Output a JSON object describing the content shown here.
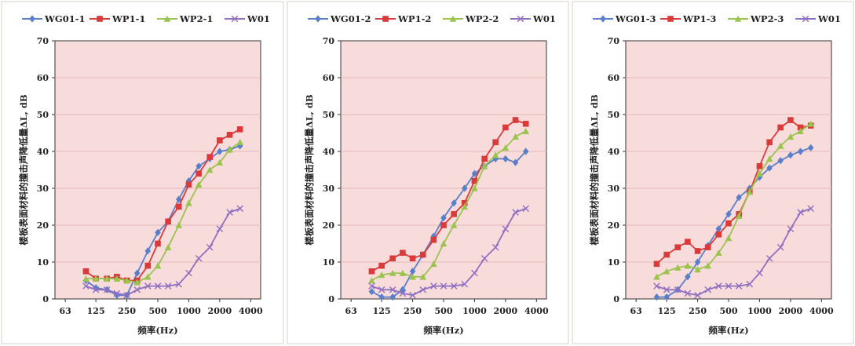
{
  "colors": {
    "background": "#ffffff",
    "panel_border": "#d8d0c8",
    "plot_background": "#f8dcdc",
    "grid": "#e6b8b8",
    "series": [
      "#5a7fc9",
      "#d93a3a",
      "#9bc44e",
      "#8f6fbf"
    ]
  },
  "chart_data": [
    {
      "type": "line",
      "xlabel": "频率(Hz)",
      "ylabel": "楼板表面材料的撞击声降低量ΔL, dB",
      "x_scale": "log",
      "x_ticks": [
        63,
        125,
        250,
        500,
        1000,
        2000,
        4000
      ],
      "xlim": [
        50,
        5000
      ],
      "ylim": [
        0,
        70
      ],
      "y_ticks": [
        0,
        10,
        20,
        30,
        40,
        50,
        60,
        70
      ],
      "legend_position": "top",
      "x": [
        100,
        125,
        160,
        200,
        250,
        315,
        400,
        500,
        630,
        800,
        1000,
        1250,
        1600,
        2000,
        2500,
        3150
      ],
      "series": [
        {
          "name": "WG01-1",
          "marker": "diamond",
          "values": [
            5,
            3,
            2.5,
            1,
            1,
            7,
            13,
            18,
            21,
            27,
            32,
            36,
            38,
            40,
            40.5,
            41.5
          ]
        },
        {
          "name": "WP1-1",
          "marker": "square",
          "values": [
            7.5,
            5.5,
            5.5,
            6,
            5,
            5,
            9,
            15,
            21,
            25,
            31,
            34,
            38.5,
            43,
            44.5,
            46
          ]
        },
        {
          "name": "WP2-1",
          "marker": "triangle",
          "values": [
            5.5,
            5.5,
            5.5,
            5.5,
            5,
            4.5,
            6,
            9,
            14,
            20,
            26,
            31,
            35,
            37,
            40.5,
            42.5
          ]
        },
        {
          "name": "W01",
          "marker": "x",
          "values": [
            3.5,
            2.5,
            2.5,
            1.5,
            1,
            2.5,
            3.5,
            3.5,
            3.5,
            4,
            7,
            11,
            14,
            19,
            23.5,
            24.5
          ]
        }
      ]
    },
    {
      "type": "line",
      "xlabel": "频率(Hz)",
      "ylabel": "楼板表面材料的撞击声降低量ΔL, dB",
      "x_scale": "log",
      "x_ticks": [
        63,
        125,
        250,
        500,
        1000,
        2000,
        4000
      ],
      "xlim": [
        50,
        5000
      ],
      "ylim": [
        0,
        70
      ],
      "y_ticks": [
        0,
        10,
        20,
        30,
        40,
        50,
        60,
        70
      ],
      "legend_position": "top",
      "x": [
        100,
        125,
        160,
        200,
        250,
        315,
        400,
        500,
        630,
        800,
        1000,
        1250,
        1600,
        2000,
        2500,
        3150
      ],
      "series": [
        {
          "name": "WG01-2",
          "marker": "diamond",
          "values": [
            2,
            0.5,
            0.5,
            2.5,
            7.5,
            12,
            17,
            22,
            26,
            30,
            34,
            36,
            38,
            38,
            37,
            40
          ]
        },
        {
          "name": "WP1-2",
          "marker": "square",
          "values": [
            7.5,
            9,
            11,
            12.5,
            11,
            12,
            16,
            20,
            23,
            26,
            32,
            38,
            42.5,
            46.5,
            48.5,
            47.5
          ]
        },
        {
          "name": "WP2-2",
          "marker": "triangle",
          "values": [
            5,
            6.5,
            7,
            7,
            6,
            6,
            9.5,
            15,
            20,
            25,
            30,
            36,
            39,
            41,
            44,
            45.5
          ]
        },
        {
          "name": "W01",
          "marker": "x",
          "values": [
            3.5,
            2.5,
            2.5,
            1.5,
            1,
            2.5,
            3.5,
            3.5,
            3.5,
            4,
            7,
            11,
            14,
            19,
            23.5,
            24.5
          ]
        }
      ]
    },
    {
      "type": "line",
      "xlabel": "频率(Hz)",
      "ylabel": "楼板表面材料的撞击声降低量ΔL, dB",
      "x_scale": "log",
      "x_ticks": [
        63,
        125,
        250,
        500,
        1000,
        2000,
        4000
      ],
      "xlim": [
        50,
        5000
      ],
      "ylim": [
        0,
        70
      ],
      "y_ticks": [
        0,
        10,
        20,
        30,
        40,
        50,
        60,
        70
      ],
      "legend_position": "top",
      "x": [
        100,
        125,
        160,
        200,
        250,
        315,
        400,
        500,
        630,
        800,
        1000,
        1250,
        1600,
        2000,
        2500,
        3150
      ],
      "series": [
        {
          "name": "WG01-3",
          "marker": "diamond",
          "values": [
            0.5,
            0.5,
            2.5,
            6,
            10,
            14.5,
            19,
            23,
            27.5,
            30,
            33,
            35.5,
            37.5,
            39,
            40,
            41
          ]
        },
        {
          "name": "WP1-3",
          "marker": "square",
          "values": [
            9.5,
            12,
            14,
            15.5,
            13,
            14,
            17.5,
            20.5,
            23,
            29,
            36,
            42.5,
            46.5,
            48.5,
            46.5,
            47
          ]
        },
        {
          "name": "WP2-3",
          "marker": "triangle",
          "values": [
            6,
            7.5,
            8.5,
            9,
            8,
            9,
            12.5,
            16.5,
            22.5,
            29,
            34,
            38,
            41.5,
            44,
            45.5,
            47.5
          ]
        },
        {
          "name": "W01",
          "marker": "x",
          "values": [
            3.5,
            2.5,
            2.5,
            1.5,
            1,
            2.5,
            3.5,
            3.5,
            3.5,
            4,
            7,
            11,
            14,
            19,
            23.5,
            24.5
          ]
        }
      ]
    }
  ]
}
